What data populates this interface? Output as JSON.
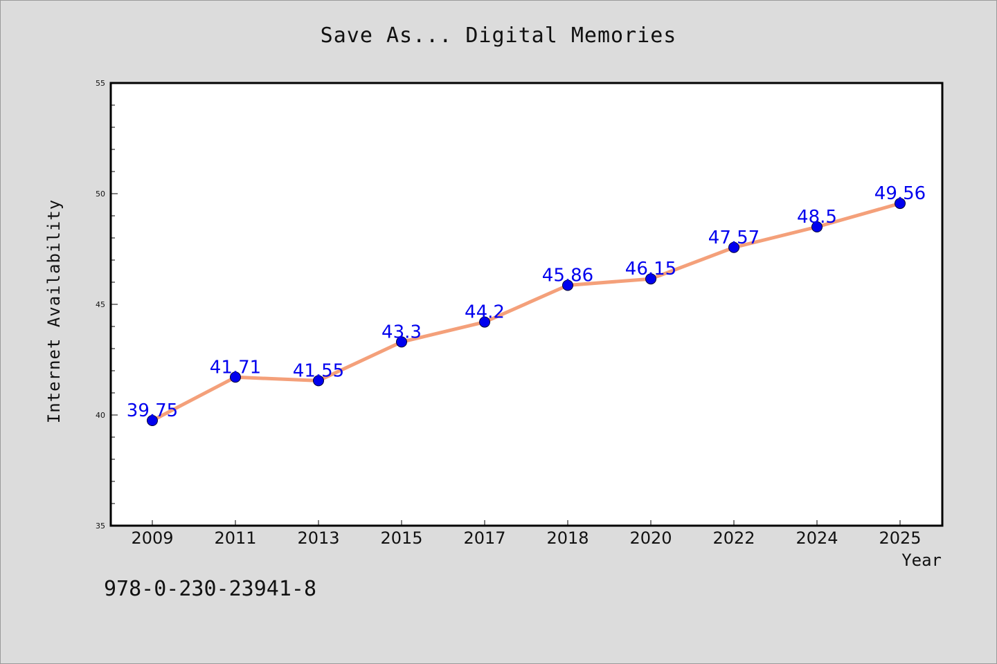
{
  "chart_data": {
    "type": "line",
    "title": "Save As... Digital Memories",
    "xlabel": "Year",
    "ylabel": "Internet Availability",
    "categories": [
      "2009",
      "2011",
      "2013",
      "2015",
      "2017",
      "2018",
      "2020",
      "2022",
      "2024",
      "2025"
    ],
    "series": [
      {
        "values": [
          39.75,
          41.71,
          41.55,
          43.3,
          44.2,
          45.86,
          46.15,
          47.57,
          48.5,
          49.56
        ],
        "labels": [
          "39.75",
          "41.71",
          "41.55",
          "43.3",
          "44.2",
          "45.86",
          "46.15",
          "47.57",
          "48.5",
          "49.56"
        ],
        "line_color": "#f4a07a",
        "marker_color": "#0000ee",
        "label_color": "#0000ee"
      }
    ],
    "ylim": [
      35,
      55
    ],
    "yticks": [
      35,
      40,
      45,
      50,
      55
    ],
    "grid": false,
    "legend": "none"
  },
  "footer": {
    "isbn": "978-0-230-23941-8"
  }
}
